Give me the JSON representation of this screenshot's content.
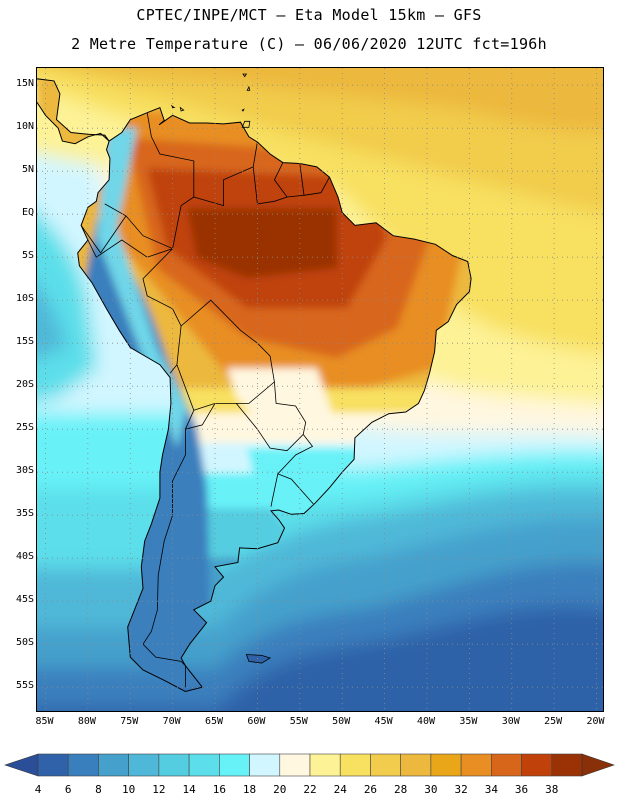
{
  "header": {
    "line1": "CPTEC/INPE/MCT –  Eta Model 15km – GFS",
    "line2": "2 Metre Temperature (C) – 06/06/2020 12UTC fct=196h"
  },
  "map": {
    "lat_labels": [
      "15N",
      "10N",
      "5N",
      "EQ",
      "5S",
      "10S",
      "15S",
      "20S",
      "25S",
      "30S",
      "35S",
      "40S",
      "45S",
      "50S",
      "55S"
    ],
    "lon_labels": [
      "85W",
      "80W",
      "75W",
      "70W",
      "65W",
      "60W",
      "55W",
      "50W",
      "45W",
      "40W",
      "35W",
      "30W",
      "25W",
      "20W"
    ],
    "lat_range": [
      17,
      -58
    ],
    "lon_range": [
      -86,
      -19
    ]
  },
  "legend": {
    "values": [
      "4",
      "6",
      "8",
      "10",
      "12",
      "14",
      "16",
      "18",
      "20",
      "22",
      "24",
      "26",
      "28",
      "30",
      "32",
      "34",
      "36",
      "38"
    ],
    "colors": [
      "#2f62a8",
      "#3a7fbd",
      "#45a0cc",
      "#4fb8d8",
      "#55cde0",
      "#5cdfea",
      "#67f2f8",
      "#d2f6ff",
      "#fff7e0",
      "#fdf296",
      "#f8e060",
      "#f2cc4c",
      "#ecb83e",
      "#e9a618",
      "#e88e23",
      "#d8661a",
      "#c0420a",
      "#9a3205"
    ],
    "left_arrow_color": "#2a4f98",
    "right_arrow_color": "#8a3008"
  }
}
